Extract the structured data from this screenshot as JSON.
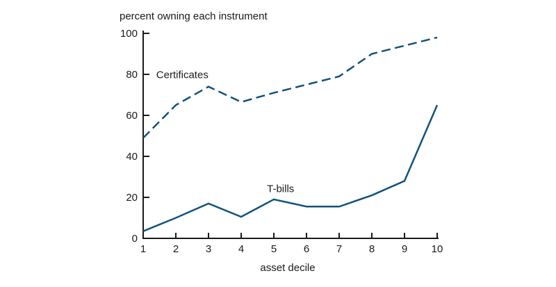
{
  "page": {
    "background": "#ffffff"
  },
  "chart_data": {
    "type": "line",
    "title": "percent owning each instrument",
    "xlabel": "asset decile",
    "ylabel": "",
    "x": [
      1,
      2,
      3,
      4,
      5,
      6,
      7,
      8,
      9,
      10
    ],
    "x_ticks": [
      1,
      2,
      3,
      4,
      5,
      6,
      7,
      8,
      9,
      10
    ],
    "y_ticks": [
      0,
      20,
      40,
      60,
      80,
      100
    ],
    "xlim": [
      1,
      10
    ],
    "ylim": [
      0,
      100
    ],
    "grid": false,
    "legend_position": "inline-labels",
    "axis_color": "#1a1a1a",
    "text_color": "#1a1a1a",
    "line_color": "#11527C",
    "series": [
      {
        "name": "Certificates",
        "line_style": "dashed",
        "color": "#11527C",
        "values": [
          49,
          65,
          74,
          66.5,
          71,
          75,
          79,
          90,
          94,
          98
        ],
        "label": {
          "text": "Certificates",
          "x": 1.4,
          "y": 80,
          "anchor": "start"
        }
      },
      {
        "name": "T-bills",
        "line_style": "solid",
        "color": "#11527C",
        "values": [
          3.5,
          10,
          17,
          10.5,
          19,
          15.5,
          15.5,
          21,
          28,
          65
        ],
        "label": {
          "text": "T-bills",
          "x": 4.79,
          "y": 24.4,
          "anchor": "start"
        }
      }
    ]
  }
}
